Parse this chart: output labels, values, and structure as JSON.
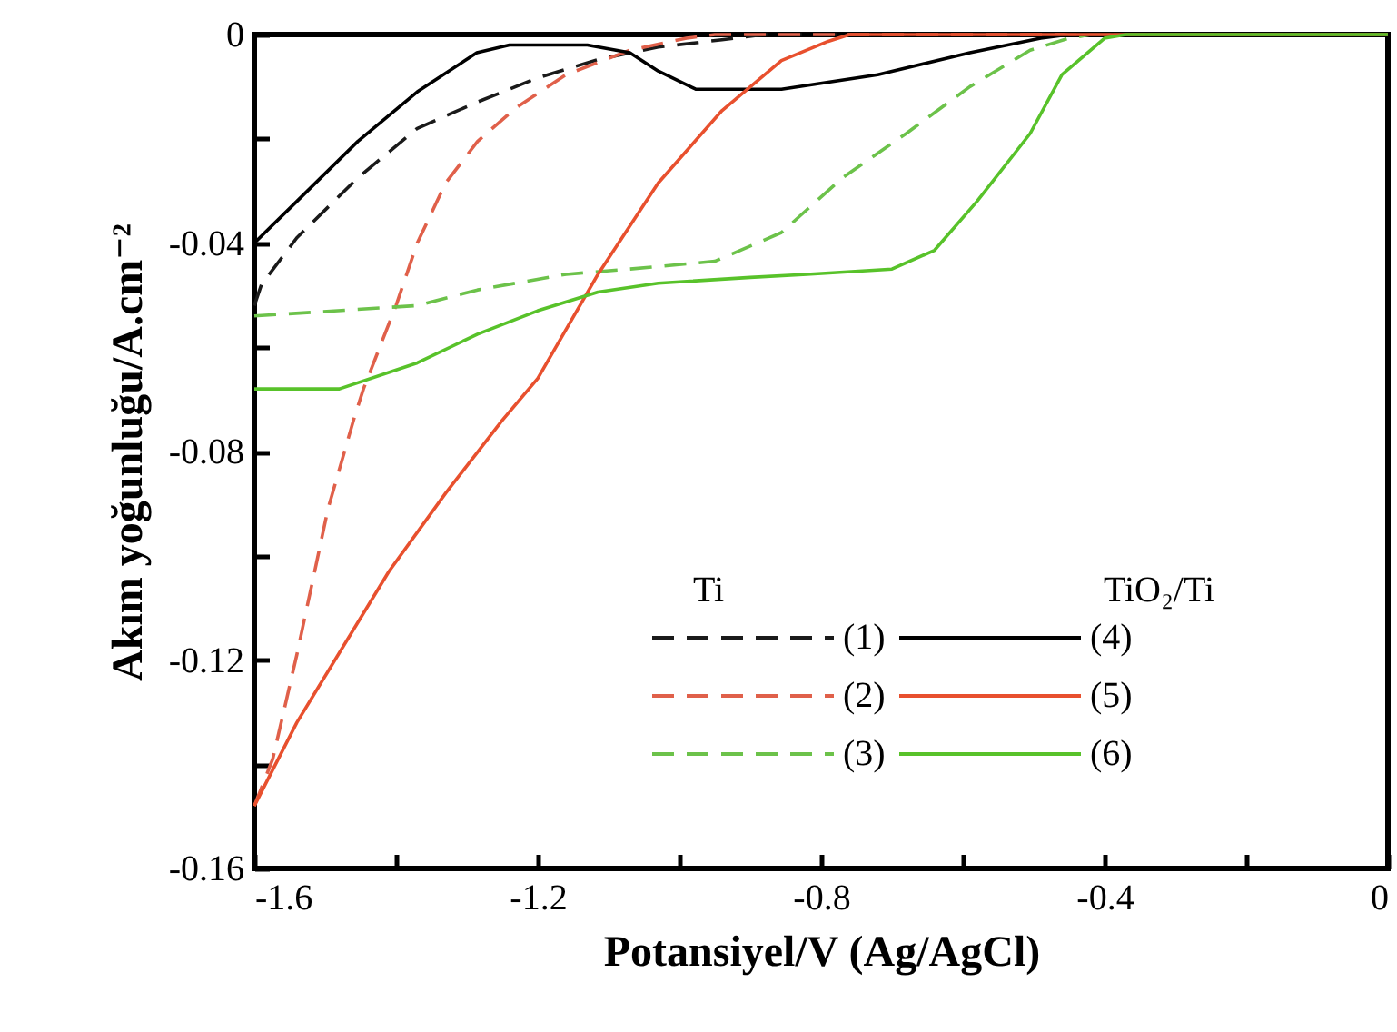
{
  "chart_data": {
    "type": "line",
    "xlabel": "Potansiyel/V (Ag/AgCl)",
    "ylabel": "Akım yoğunluğu/A.cm⁻²",
    "annotations": [
      "Ti",
      "TiO₂/Ti"
    ],
    "xlim": [
      -1.6,
      0
    ],
    "ylim": [
      -0.16,
      0
    ],
    "xticks": [
      -1.6,
      {
        "value": -1.4,
        "label": null
      },
      -1.2,
      {
        "value": -1.0,
        "label": null
      },
      -0.8,
      {
        "value": -0.6,
        "label": null
      },
      -0.4,
      {
        "value": -0.2,
        "label": null
      },
      0
    ],
    "yticks": [
      -0.16,
      {
        "value": -0.14,
        "label": null
      },
      -0.12,
      {
        "value": -0.1,
        "label": null
      },
      -0.08,
      {
        "value": -0.06,
        "label": null
      },
      -0.04,
      {
        "value": -0.02,
        "label": null
      },
      0
    ],
    "legend": "bottom right",
    "grid": false,
    "marker": "none",
    "series": [
      {
        "name": "(1)",
        "color": "#1a1a1a",
        "line_style": "dashed",
        "x": [
          -1.6,
          -1.59,
          -1.54,
          -1.454,
          -1.37,
          -1.286,
          -1.2,
          -1.115,
          -1.03,
          -0.94,
          -0.88,
          0
        ],
        "values": [
          -0.052,
          -0.048,
          -0.039,
          -0.0275,
          -0.018,
          -0.013,
          -0.0083,
          -0.0048,
          -0.0024,
          -0.001,
          0,
          0
        ]
      },
      {
        "name": "(2)",
        "color": "#e0604a",
        "line_style": "dashed",
        "x": [
          -1.6,
          -1.574,
          -1.54,
          -1.496,
          -1.46,
          -1.446,
          -1.4,
          -1.37,
          -1.33,
          -1.285,
          -1.23,
          -1.16,
          -1.07,
          -0.99,
          -0.95,
          0
        ],
        "values": [
          -0.148,
          -0.139,
          -0.119,
          -0.091,
          -0.074,
          -0.068,
          -0.052,
          -0.04,
          -0.0285,
          -0.0205,
          -0.014,
          -0.0077,
          -0.003,
          -0.0007,
          0,
          0
        ]
      },
      {
        "name": "(3)",
        "color": "#6cc24a",
        "line_style": "dashed",
        "x": [
          -1.6,
          -1.37,
          -1.285,
          -1.16,
          -1.07,
          -0.95,
          -0.856,
          -0.77,
          -0.68,
          -0.59,
          -0.505,
          -0.45,
          -0.42,
          0
        ],
        "values": [
          -0.054,
          -0.052,
          -0.049,
          -0.046,
          -0.045,
          -0.0435,
          -0.038,
          -0.0275,
          -0.019,
          -0.01,
          -0.003,
          -0.0007,
          0,
          0
        ]
      },
      {
        "name": "(4)",
        "color": "#000000",
        "line_style": "solid",
        "x": [
          -1.6,
          -1.54,
          -1.454,
          -1.37,
          -1.286,
          -1.24,
          -1.13,
          -1.07,
          -1.03,
          -0.977,
          -0.856,
          -0.72,
          -0.59,
          -0.49,
          -0.45,
          0
        ],
        "values": [
          -0.04,
          -0.032,
          -0.0205,
          -0.011,
          -0.0035,
          -0.002,
          -0.002,
          -0.0035,
          -0.007,
          -0.0105,
          -0.0105,
          -0.0077,
          -0.0035,
          -0.0007,
          0,
          0
        ]
      },
      {
        "name": "(5)",
        "color": "#e8502e",
        "line_style": "solid",
        "x": [
          -1.6,
          -1.54,
          -1.41,
          -1.33,
          -1.25,
          -1.2,
          -1.115,
          -1.03,
          -0.94,
          -0.856,
          -0.79,
          -0.76,
          0
        ],
        "values": [
          -0.148,
          -0.132,
          -0.103,
          -0.088,
          -0.074,
          -0.066,
          -0.046,
          -0.0285,
          -0.0146,
          -0.005,
          -0.0013,
          0,
          0
        ]
      },
      {
        "name": "(6)",
        "color": "#58c22a",
        "line_style": "solid",
        "x": [
          -1.6,
          -1.48,
          -1.37,
          -1.285,
          -1.2,
          -1.115,
          -1.03,
          -0.9,
          -0.82,
          -0.7,
          -0.64,
          -0.58,
          -0.505,
          -0.46,
          -0.4,
          -0.37,
          0
        ],
        "values": [
          -0.068,
          -0.068,
          -0.063,
          -0.0575,
          -0.053,
          -0.0494,
          -0.0477,
          -0.0466,
          -0.046,
          -0.045,
          -0.0414,
          -0.032,
          -0.019,
          -0.0077,
          -0.0007,
          0,
          0
        ]
      }
    ]
  }
}
